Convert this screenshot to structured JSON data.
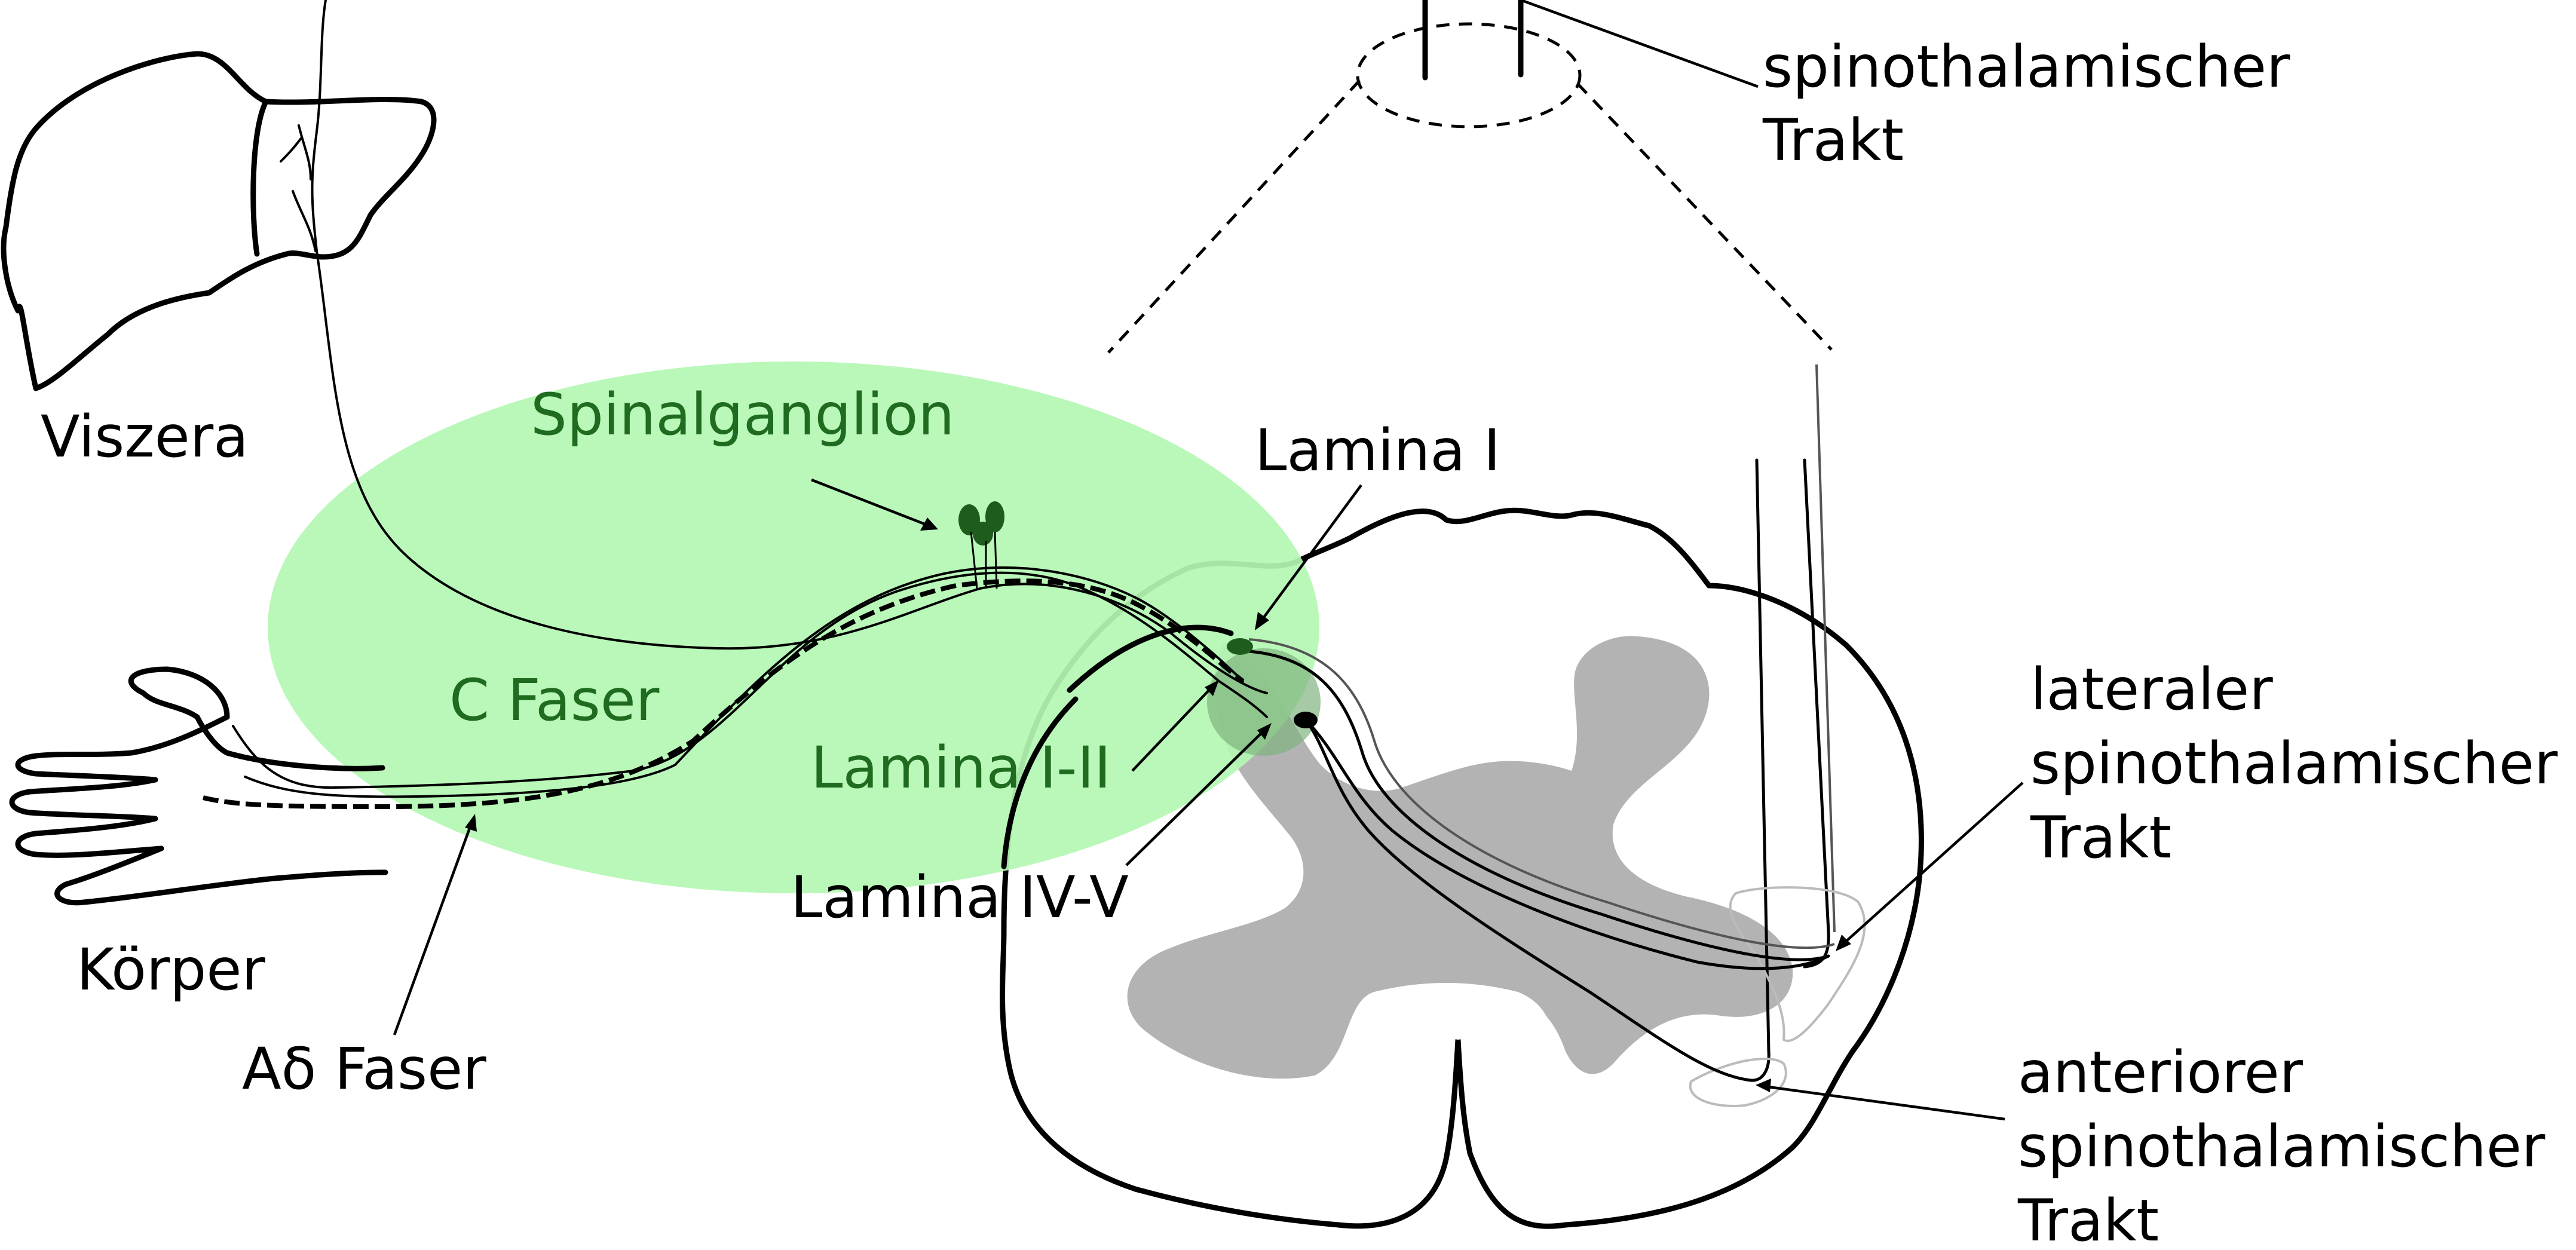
{
  "labels": {
    "viszera": "Viszera",
    "koerper": "Körper",
    "a_delta_faser": "Aδ Faser",
    "c_faser": "C Faser",
    "spinalganglion": "Spinalganglion",
    "lamina_i": "Lamina I",
    "lamina_i_ii": "Lamina I-II",
    "lamina_iv_v": "Lamina IV-V",
    "spinothalamic_top_line1": "spinothalamischer",
    "spinothalamic_top_line2": "Trakt",
    "lateral_line1": "lateraler",
    "lateral_line2": "spinothalamischer",
    "lateral_line3": "Trakt",
    "anterior_line1": "anteriorer",
    "anterior_line2": "spinothalamischer",
    "anterior_line3": "Trakt"
  },
  "colors": {
    "ganglion_region": "#b3f7b3",
    "grey_matter": "#b3b3b3",
    "green_label": "#1f6b1f",
    "neuron_green": "#1e5c1e",
    "outline": "#000000"
  }
}
